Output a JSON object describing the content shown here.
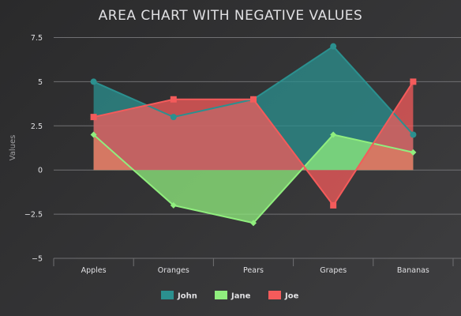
{
  "chart_data": {
    "type": "area",
    "title": "AREA CHART WITH NEGATIVE VALUES",
    "xlabel": "",
    "ylabel": "Values",
    "categories": [
      "Apples",
      "Oranges",
      "Pears",
      "Grapes",
      "Bananas"
    ],
    "ylim": [
      -5,
      7.5
    ],
    "yticks": [
      -5,
      -2.5,
      0,
      2.5,
      5,
      7.5
    ],
    "ytick_labels": [
      "−5",
      "−2.5",
      "0",
      "2.5",
      "5",
      "7.5"
    ],
    "grid": true,
    "legend_position": "bottom-center",
    "series": [
      {
        "name": "John",
        "color": "#2b908f",
        "marker": "circle",
        "values": [
          5,
          3,
          4,
          7,
          2
        ]
      },
      {
        "name": "Jane",
        "color": "#90ee7e",
        "marker": "diamond",
        "values": [
          2,
          -2,
          -3,
          2,
          1
        ]
      },
      {
        "name": "Joe",
        "color": "#f45b5b",
        "marker": "square",
        "values": [
          3,
          4,
          4,
          -2,
          5
        ]
      }
    ]
  }
}
